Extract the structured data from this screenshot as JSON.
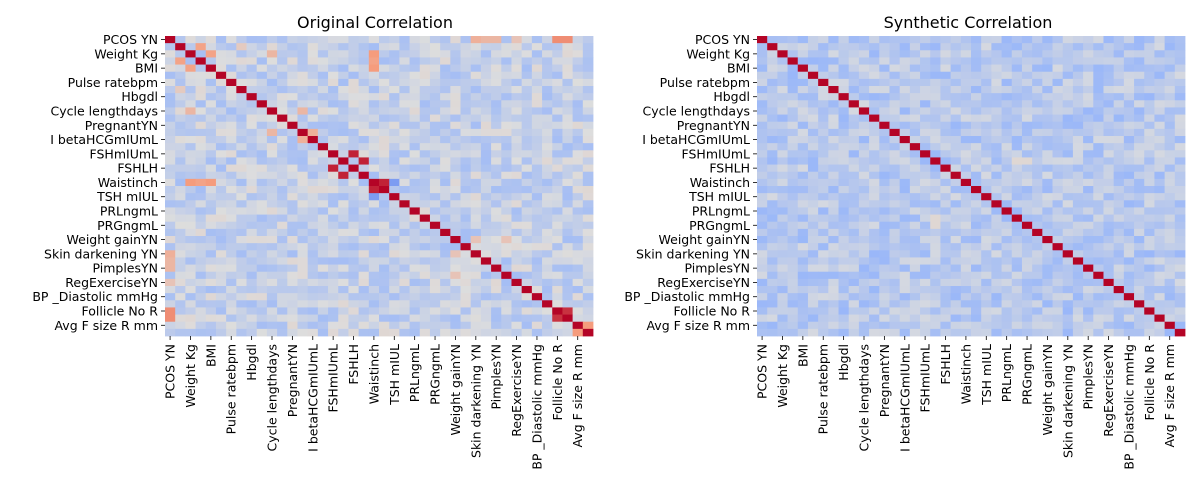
{
  "chart_data": [
    {
      "type": "heatmap",
      "title": "Original Correlation",
      "ytick_labels": [
        "PCOS YN",
        "Weight Kg",
        "BMI",
        "Pulse ratebpm",
        "Hbgdl",
        "Cycle lengthdays",
        "PregnantYN",
        "I betaHCGmIUmL",
        "FSHmIUmL",
        "FSHLH",
        "Waistinch",
        "TSH mIUL",
        "PRLngmL",
        "PRGngmL",
        "Weight gainYN",
        "Skin darkening YN",
        "PimplesYN",
        "RegExerciseYN",
        "BP _Diastolic mmHg",
        "Follicle No R",
        "Avg F size R mm"
      ],
      "xtick_labels": [
        "PCOS YN",
        "Weight Kg",
        "BMI",
        "Pulse ratebpm",
        "Hbgdl",
        "Cycle lengthdays",
        "PregnantYN",
        "I betaHCGmIUmL",
        "FSHmIUmL",
        "FSHLH",
        "Waistinch",
        "TSH mIUL",
        "PRLngmL",
        "PRGngmL",
        "Weight gainYN",
        "Skin darkening YN",
        "PimplesYN",
        "RegExerciseYN",
        "BP _Diastolic mmHg",
        "Follicle No R",
        "Avg F size R mm"
      ],
      "n_variables": 42,
      "label_every": 2,
      "colormap": "coolwarm",
      "diagonal_value": 1.0,
      "notable_correlations": [
        {
          "i": 0,
          "j": 30,
          "value": 0.35
        },
        {
          "i": 0,
          "j": 31,
          "value": 0.3
        },
        {
          "i": 0,
          "j": 32,
          "value": 0.3
        },
        {
          "i": 0,
          "j": 34,
          "value": 0.2
        },
        {
          "i": 0,
          "j": 38,
          "value": 0.55
        },
        {
          "i": 0,
          "j": 39,
          "value": 0.55
        },
        {
          "i": 2,
          "j": 4,
          "value": 0.45
        },
        {
          "i": 1,
          "j": 3,
          "value": 0.45
        },
        {
          "i": 2,
          "j": 20,
          "value": 0.5
        },
        {
          "i": 4,
          "j": 20,
          "value": 0.5
        },
        {
          "i": 3,
          "j": 20,
          "value": 0.45
        },
        {
          "i": 2,
          "j": 10,
          "value": 0.3
        },
        {
          "i": 10,
          "j": 13,
          "value": 0.3
        },
        {
          "i": 13,
          "j": 14,
          "value": 0.35
        },
        {
          "i": 16,
          "j": 18,
          "value": 0.9
        },
        {
          "i": 17,
          "j": 19,
          "value": 0.9
        },
        {
          "i": 20,
          "j": 21,
          "value": 0.9
        },
        {
          "i": 20,
          "j": 22,
          "value": -0.6
        },
        {
          "i": 38,
          "j": 39,
          "value": 0.85
        },
        {
          "i": 40,
          "j": 41,
          "value": 0.5
        },
        {
          "i": 28,
          "j": 33,
          "value": 0.2
        },
        {
          "i": 28,
          "j": 30,
          "value": 0.2
        },
        {
          "i": 1,
          "j": 7,
          "value": 0.15
        },
        {
          "i": 0,
          "j": 11,
          "value": -0.3
        },
        {
          "i": 0,
          "j": 10,
          "value": -0.2
        }
      ],
      "noise_seed": 7,
      "noise_range": [
        -0.35,
        0.05
      ]
    },
    {
      "type": "heatmap",
      "title": "Synthetic Correlation",
      "ytick_labels": [
        "PCOS YN",
        "Weight Kg",
        "BMI",
        "Pulse ratebpm",
        "Hbgdl",
        "Cycle lengthdays",
        "PregnantYN",
        "I betaHCGmIUmL",
        "FSHmIUmL",
        "FSHLH",
        "Waistinch",
        "TSH mIUL",
        "PRLngmL",
        "PRGngmL",
        "Weight gainYN",
        "Skin darkening YN",
        "PimplesYN",
        "RegExerciseYN",
        "BP _Diastolic mmHg",
        "Follicle No R",
        "Avg F size R mm"
      ],
      "xtick_labels": [
        "PCOS YN",
        "Weight Kg",
        "BMI",
        "Pulse ratebpm",
        "Hbgdl",
        "Cycle lengthdays",
        "PregnantYN",
        "I betaHCGmIUmL",
        "FSHmIUmL",
        "FSHLH",
        "Waistinch",
        "TSH mIUL",
        "PRLngmL",
        "PRGngmL",
        "Weight gainYN",
        "Skin darkening YN",
        "PimplesYN",
        "RegExerciseYN",
        "BP _Diastolic mmHg",
        "Follicle No R",
        "Avg F size R mm"
      ],
      "n_variables": 42,
      "label_every": 2,
      "colormap": "coolwarm",
      "diagonal_value": 1.0,
      "notable_correlations": [
        {
          "i": 17,
          "j": 26,
          "value": 0.05
        },
        {
          "i": 25,
          "j": 17,
          "value": 0.05
        }
      ],
      "noise_seed": 11,
      "noise_range": [
        -0.42,
        -0.05
      ]
    }
  ]
}
